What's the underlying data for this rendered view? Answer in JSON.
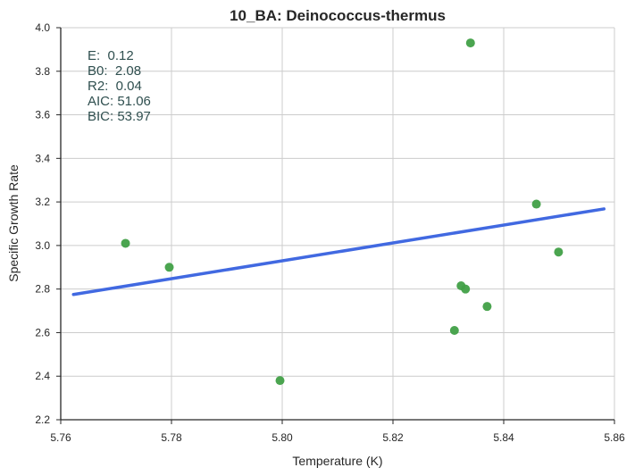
{
  "chart_data": {
    "type": "scatter",
    "title": "10_BA: Deinococcus-thermus",
    "xlabel": "Temperature (K)",
    "ylabel": "Specific Growth Rate",
    "xlim": [
      5.76,
      5.86
    ],
    "ylim": [
      2.2,
      4.0
    ],
    "xticks": [
      "5.76",
      "5.78",
      "5.80",
      "5.82",
      "5.84",
      "5.86"
    ],
    "yticks": [
      "2.2",
      "2.4",
      "2.6",
      "2.8",
      "3.0",
      "3.2",
      "3.4",
      "3.6",
      "3.8",
      "4.0"
    ],
    "grid": true,
    "points": {
      "x": [
        5.7717,
        5.7796,
        5.7996,
        5.8311,
        5.8323,
        5.8331,
        5.834,
        5.837,
        5.8459,
        5.8499
      ],
      "y": [
        3.01,
        2.9,
        2.38,
        2.61,
        2.815,
        2.8,
        3.93,
        2.72,
        3.19,
        2.97
      ],
      "color": "#41a047"
    },
    "fit_line": {
      "x": [
        5.7623,
        5.8581
      ],
      "y": [
        2.775,
        3.168
      ],
      "color": "#4169e1"
    },
    "annotations": [
      "E:  0.12",
      "B0:  2.08",
      "R2:  0.04",
      "AIC: 51.06",
      "BIC: 53.97"
    ]
  }
}
